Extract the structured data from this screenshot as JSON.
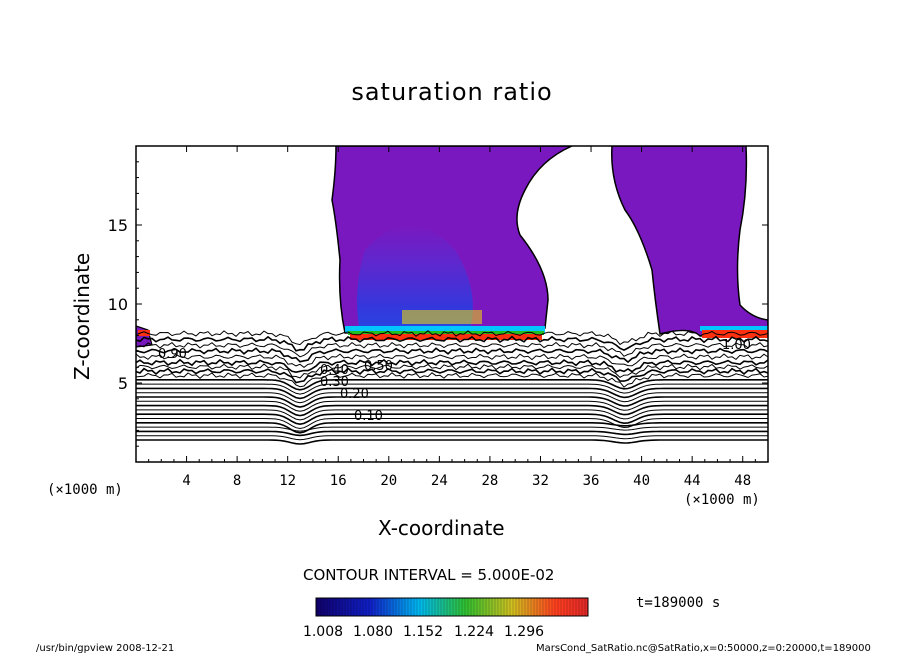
{
  "chart_data": {
    "type": "heatmap",
    "title": "saturation ratio",
    "xlabel": "X-coordinate",
    "ylabel": "Z-coordinate",
    "x_unit_left": "(×1000 m)",
    "x_unit_right": "(×1000 m)",
    "xlim": [
      0,
      50
    ],
    "ylim": [
      0,
      20
    ],
    "xticks": [
      4,
      8,
      12,
      16,
      20,
      24,
      28,
      32,
      36,
      40,
      44,
      48
    ],
    "yticks": [
      5,
      10,
      15
    ],
    "contour_interval": "CONTOUR INTERVAL = 5.000E-02",
    "contour_labels": [
      "0.10",
      "0.20",
      "0.30",
      "0.40",
      "0.50",
      "0.90",
      "1.00"
    ],
    "colorbar": {
      "ticks": [
        "1.008",
        "1.080",
        "1.152",
        "1.224",
        "1.296"
      ],
      "colors": [
        "#10006a",
        "#0a3cd8",
        "#00c8ff",
        "#20c020",
        "#f0e000",
        "#ff3010",
        "#e02020"
      ]
    },
    "fill_color": "#7a18c0",
    "time_label": "t=189000 s",
    "grid": false,
    "legend": "colorbar-bottom"
  },
  "footer": {
    "left": "/usr/bin/gpview  2008-12-21",
    "right": "MarsCond_SatRatio.nc@SatRatio,x=0:50000,z=0:20000,t=189000"
  }
}
